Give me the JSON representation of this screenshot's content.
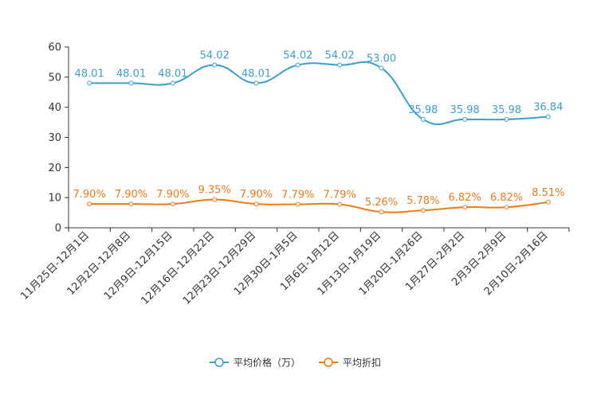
{
  "chart_data": {
    "type": "line",
    "title": "",
    "xlabel": "",
    "ylabel": "",
    "ylim": [
      0,
      60
    ],
    "yticks": [
      0,
      10,
      20,
      30,
      40,
      50,
      60
    ],
    "grid": false,
    "legend_position": "bottom-center",
    "categories": [
      "11月25日-12月1日",
      "12月2日-12月8日",
      "12月9日-12月15日",
      "12月16日-12月22日",
      "12月23日-12月29日",
      "12月30日-1月5日",
      "1月6日-1月12日",
      "1月13日-1月19日",
      "1月20日-1月26日",
      "1月27日-2月2日",
      "2月3日-2月9日",
      "2月10日-2月16日"
    ],
    "series": [
      {
        "name": "平均价格（万）",
        "color": "#3a9fcf",
        "values": [
          48.01,
          48.01,
          48.01,
          54.02,
          48.01,
          54.02,
          54.02,
          53.0,
          35.98,
          35.98,
          35.98,
          36.84
        ],
        "labels": [
          "48.01",
          "48.01",
          "48.01",
          "54.02",
          "48.01",
          "54.02",
          "54.02",
          "53.00",
          "35.98",
          "35.98",
          "35.98",
          "36.84"
        ]
      },
      {
        "name": "平均折扣",
        "color": "#f07a18",
        "values": [
          7.9,
          7.9,
          7.9,
          9.35,
          7.9,
          7.79,
          7.79,
          5.26,
          5.78,
          6.82,
          6.82,
          8.51
        ],
        "labels": [
          "7.90%",
          "7.90%",
          "7.90%",
          "9.35%",
          "7.90%",
          "7.79%",
          "7.79%",
          "5.26%",
          "5.78%",
          "6.82%",
          "6.82%",
          "8.51%"
        ]
      }
    ]
  }
}
